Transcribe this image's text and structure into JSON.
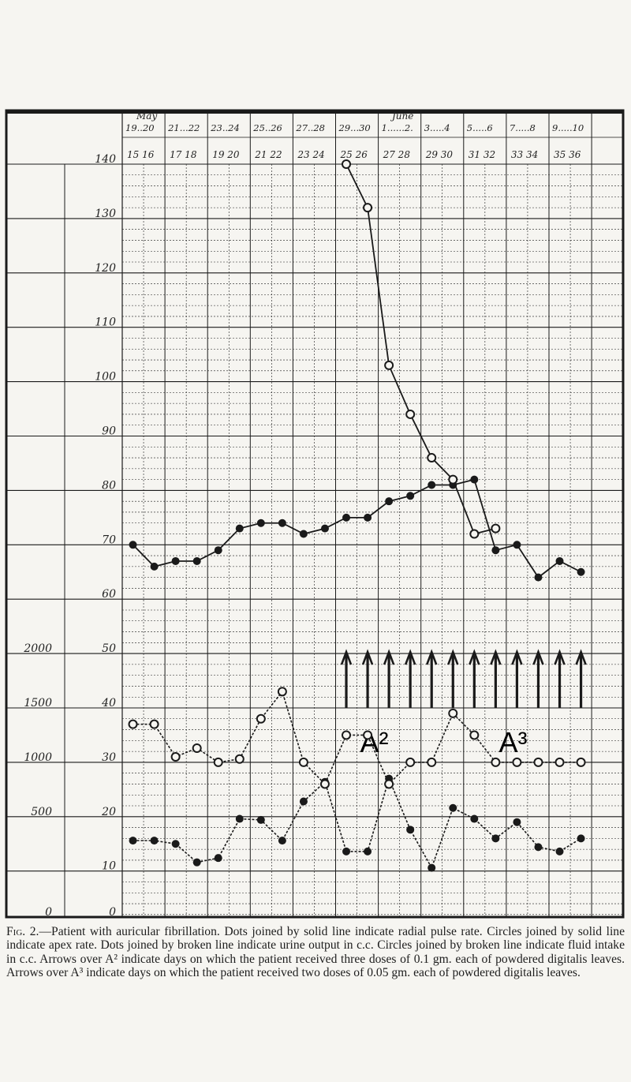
{
  "caption": {
    "figure_label": "Fig. 2.",
    "text": "—Patient with auricular fibrillation. Dots joined by solid line indicate radial pulse rate. Circles joined by solid line indicate apex rate. Dots joined by broken line indicate urine output in c.c. Circles joined by broken line indicate fluid intake in c.c. Arrows over A² indicate days on which the patient received three doses of 0.1 gm. each of powdered digitalis leaves. Arrows over A³ indicate days on which the patient received two doses of 0.05 gm. each of powdered digitalis leaves."
  },
  "header": {
    "month_may": "May",
    "month_june": "June",
    "row1": [
      "19..20",
      "21...22",
      "23..24",
      "25..26",
      "27..28",
      "29...30",
      "1......2.",
      "3.....4",
      "5.....6",
      "7.....8",
      "9.....10"
    ],
    "row2": [
      "15  16",
      "17  18",
      "19  20",
      "21  22",
      "23  24",
      "25  26",
      "27  28",
      "29  30",
      "31  32",
      "33  34",
      "35  36"
    ]
  },
  "colors": {
    "ink": "#1a1a1a",
    "paper": "#f6f5f1",
    "grid": "#2a2a2a"
  },
  "chart_data": {
    "type": "line",
    "title": "",
    "x_label": "",
    "x": [
      15,
      16,
      17,
      18,
      19,
      20,
      21,
      22,
      23,
      24,
      25,
      26,
      27,
      28,
      29,
      30,
      31,
      32,
      33,
      34,
      35,
      36
    ],
    "rate_axis": {
      "ticks": [
        "0",
        "10",
        "20",
        "30",
        "40",
        "50",
        "60",
        "70",
        "80",
        "90",
        "100",
        "110",
        "120",
        "130",
        "140"
      ],
      "range": [
        0,
        140
      ]
    },
    "cc_axis": {
      "ticks": [
        "0",
        "500",
        "1000",
        "1500",
        "2000"
      ],
      "range": [
        0,
        2000
      ]
    },
    "series": [
      {
        "line_style": "dots, solid line",
        "axis": "rate",
        "values": [
          70,
          66,
          67,
          67,
          69,
          73,
          74,
          74,
          72,
          73,
          75,
          75,
          78,
          79,
          81,
          81,
          82,
          69,
          70,
          64,
          67,
          65
        ]
      },
      {
        "line_style": "circles, solid line",
        "axis": "rate",
        "values": [
          null,
          null,
          null,
          null,
          null,
          null,
          null,
          null,
          null,
          null,
          140,
          132,
          103,
          94,
          86,
          82,
          72,
          73,
          null,
          null,
          null,
          null
        ]
      },
      {
        "line_style": "dots, broken line",
        "axis": "cc",
        "values": [
          280,
          280,
          250,
          80,
          120,
          480,
          470,
          280,
          640,
          820,
          180,
          180,
          850,
          380,
          30,
          580,
          480,
          300,
          450,
          220,
          180,
          300
        ]
      },
      {
        "line_style": "circles, broken line",
        "axis": "cc",
        "values": [
          1350,
          1350,
          1050,
          1130,
          1000,
          1030,
          1400,
          1650,
          1000,
          800,
          1250,
          1250,
          800,
          1000,
          1000,
          1450,
          1250,
          1000,
          1000,
          1000,
          1000,
          1000
        ]
      }
    ],
    "arrow_days": [
      {
        "label": "A²",
        "days": [
          25,
          26,
          27,
          28,
          29,
          30
        ]
      },
      {
        "label": "A³",
        "days": [
          31,
          32,
          33,
          34,
          35,
          36
        ]
      }
    ],
    "grid": true
  }
}
